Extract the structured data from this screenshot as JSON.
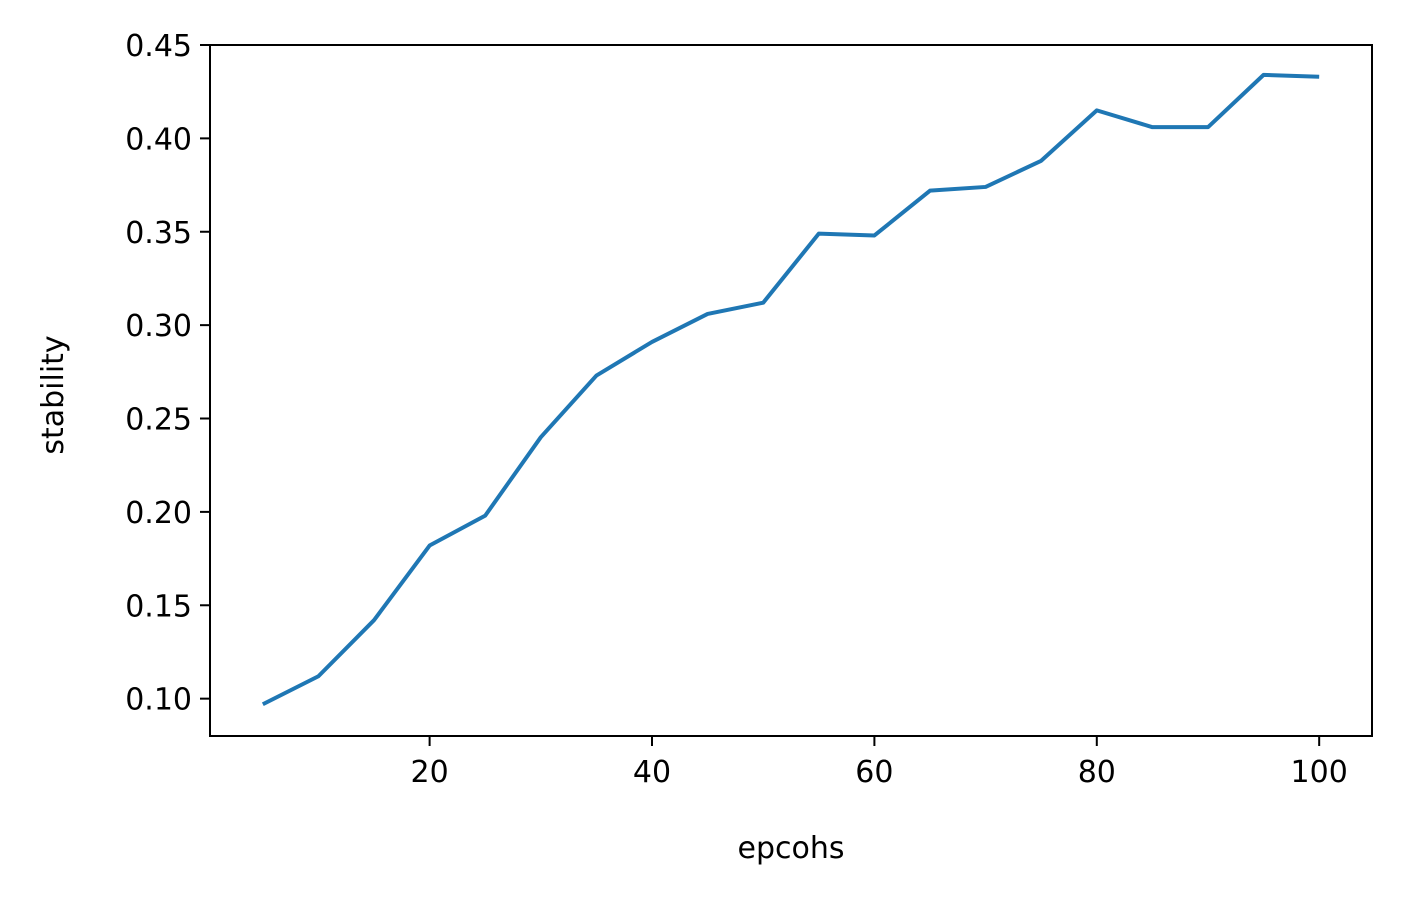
{
  "chart_data": {
    "type": "line",
    "title": "",
    "xlabel": "epcohs",
    "ylabel": "stability",
    "xlim": [
      0.25,
      104.75
    ],
    "ylim": [
      0.08,
      0.45
    ],
    "x_ticks": [
      20,
      40,
      60,
      80,
      100
    ],
    "x_tick_labels": [
      "20",
      "40",
      "60",
      "80",
      "100"
    ],
    "y_ticks": [
      0.1,
      0.15,
      0.2,
      0.25,
      0.3,
      0.35,
      0.4,
      0.45
    ],
    "y_tick_labels": [
      "0.10",
      "0.15",
      "0.20",
      "0.25",
      "0.30",
      "0.35",
      "0.40",
      "0.45"
    ],
    "grid": false,
    "legend": "none",
    "series": [
      {
        "color": "#1f77b4",
        "x": [
          5,
          10,
          15,
          20,
          25,
          30,
          35,
          40,
          45,
          50,
          55,
          60,
          65,
          70,
          75,
          80,
          85,
          90,
          95,
          100
        ],
        "y": [
          0.097,
          0.112,
          0.142,
          0.182,
          0.198,
          0.24,
          0.273,
          0.291,
          0.306,
          0.312,
          0.349,
          0.348,
          0.372,
          0.374,
          0.388,
          0.415,
          0.406,
          0.406,
          0.434,
          0.433
        ]
      }
    ]
  }
}
